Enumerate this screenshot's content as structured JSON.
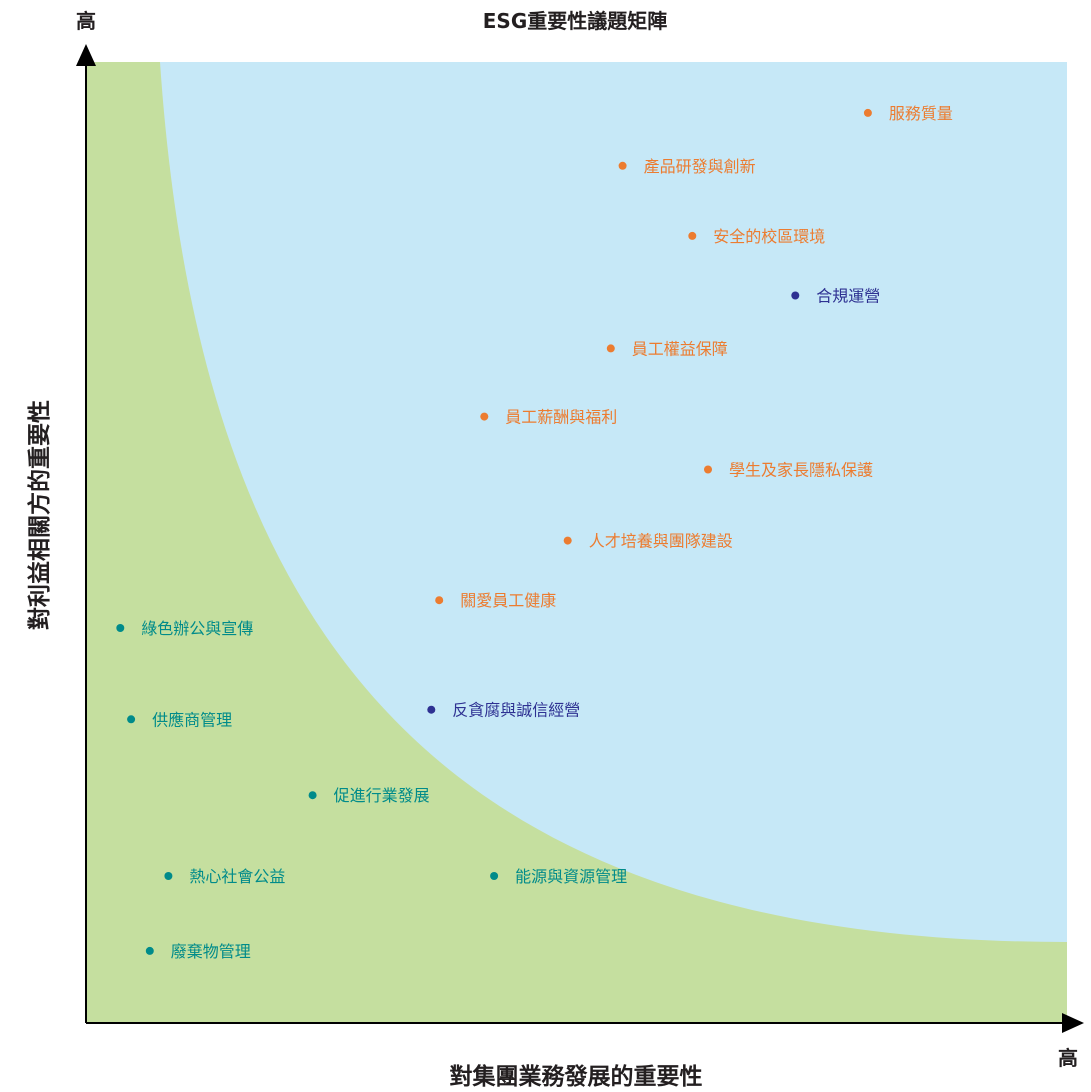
{
  "chart_data": {
    "type": "scatter",
    "title": "ESG重要性議題矩陣",
    "xlabel": "對集團業務發展的重要性",
    "ylabel": "對利益相關方的重要性",
    "x_axis_high_label": "高",
    "y_axis_high_label": "高",
    "xlim": [
      0,
      100
    ],
    "ylim": [
      0,
      100
    ],
    "grid": false,
    "legend": "none",
    "regions": [
      {
        "color": "#c5df9f"
      },
      {
        "color": "#c6e8f7"
      }
    ],
    "series_colors": {
      "high": "#ec7c30",
      "medium": "#2e3192",
      "low": "#008b8a"
    },
    "points": [
      {
        "label": "服務質量",
        "x": 79.7,
        "y": 94.7,
        "group": "high"
      },
      {
        "label": "產品研發與創新",
        "x": 54.7,
        "y": 89.2,
        "group": "high"
      },
      {
        "label": "安全的校區環境",
        "x": 61.8,
        "y": 81.9,
        "group": "high"
      },
      {
        "label": "合規運營",
        "x": 72.3,
        "y": 75.7,
        "group": "medium"
      },
      {
        "label": "員工權益保障",
        "x": 53.5,
        "y": 70.2,
        "group": "high"
      },
      {
        "label": "員工薪酬與福利",
        "x": 40.6,
        "y": 63.1,
        "group": "high"
      },
      {
        "label": "學生及家長隱私保護",
        "x": 63.4,
        "y": 57.6,
        "group": "high"
      },
      {
        "label": "人才培養與團隊建設",
        "x": 49.1,
        "y": 50.2,
        "group": "high"
      },
      {
        "label": "關愛員工健康",
        "x": 36.0,
        "y": 44.0,
        "group": "high"
      },
      {
        "label": "綠色辦公與宣傳",
        "x": 3.5,
        "y": 41.1,
        "group": "low"
      },
      {
        "label": "反貪腐與誠信經營",
        "x": 35.2,
        "y": 32.6,
        "group": "medium"
      },
      {
        "label": "供應商管理",
        "x": 4.6,
        "y": 31.6,
        "group": "low"
      },
      {
        "label": "促進行業發展",
        "x": 23.1,
        "y": 23.7,
        "group": "low"
      },
      {
        "label": "熱心社會公益",
        "x": 8.4,
        "y": 15.3,
        "group": "low"
      },
      {
        "label": "能源與資源管理",
        "x": 41.6,
        "y": 15.3,
        "group": "low"
      },
      {
        "label": "廢棄物管理",
        "x": 6.5,
        "y": 7.5,
        "group": "low"
      }
    ]
  }
}
